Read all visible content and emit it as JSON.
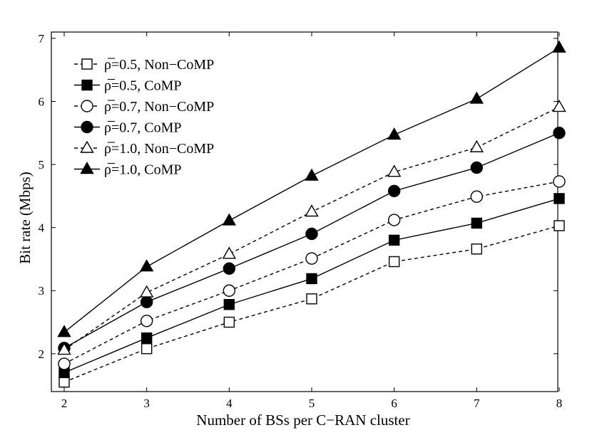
{
  "chart_data": {
    "type": "line",
    "title": "",
    "xlabel": "Number of BSs per C−RAN cluster",
    "ylabel": "Bit rate (Mbps)",
    "x": [
      2,
      3,
      4,
      5,
      6,
      7,
      8
    ],
    "xlim": [
      2,
      8
    ],
    "ylim": [
      1.4,
      7.1
    ],
    "xticks": [
      "2",
      "3",
      "4",
      "5",
      "6",
      "7",
      "8"
    ],
    "yticks": [
      "2",
      "3",
      "4",
      "5",
      "6",
      "7"
    ],
    "grid": false,
    "legend_position": "top-left",
    "series": [
      {
        "name": "ρ̅=0.5, Non−CoMP",
        "marker": "square-open",
        "line": "dashed",
        "values": [
          1.55,
          2.08,
          2.5,
          2.87,
          3.46,
          3.66,
          4.03
        ]
      },
      {
        "name": "ρ̅=0.5, CoMP",
        "marker": "square-filled",
        "line": "solid",
        "values": [
          1.7,
          2.25,
          2.78,
          3.19,
          3.8,
          4.07,
          4.46
        ]
      },
      {
        "name": "ρ̅=0.7, Non−CoMP",
        "marker": "circle-open",
        "line": "dashed",
        "values": [
          1.84,
          2.52,
          3.0,
          3.51,
          4.12,
          4.49,
          4.73
        ]
      },
      {
        "name": "ρ̅=0.7, CoMP",
        "marker": "circle-filled",
        "line": "solid",
        "values": [
          2.09,
          2.82,
          3.35,
          3.9,
          4.58,
          4.95,
          5.5
        ]
      },
      {
        "name": "ρ̅=1.0, Non−CoMP",
        "marker": "triangle-open",
        "line": "dashed",
        "values": [
          2.06,
          2.97,
          3.58,
          4.25,
          4.88,
          5.27,
          5.91
        ]
      },
      {
        "name": "ρ̅=1.0, CoMP",
        "marker": "triangle-filled",
        "line": "solid",
        "values": [
          2.34,
          3.38,
          4.11,
          4.82,
          5.47,
          6.04,
          6.85
        ]
      }
    ]
  }
}
